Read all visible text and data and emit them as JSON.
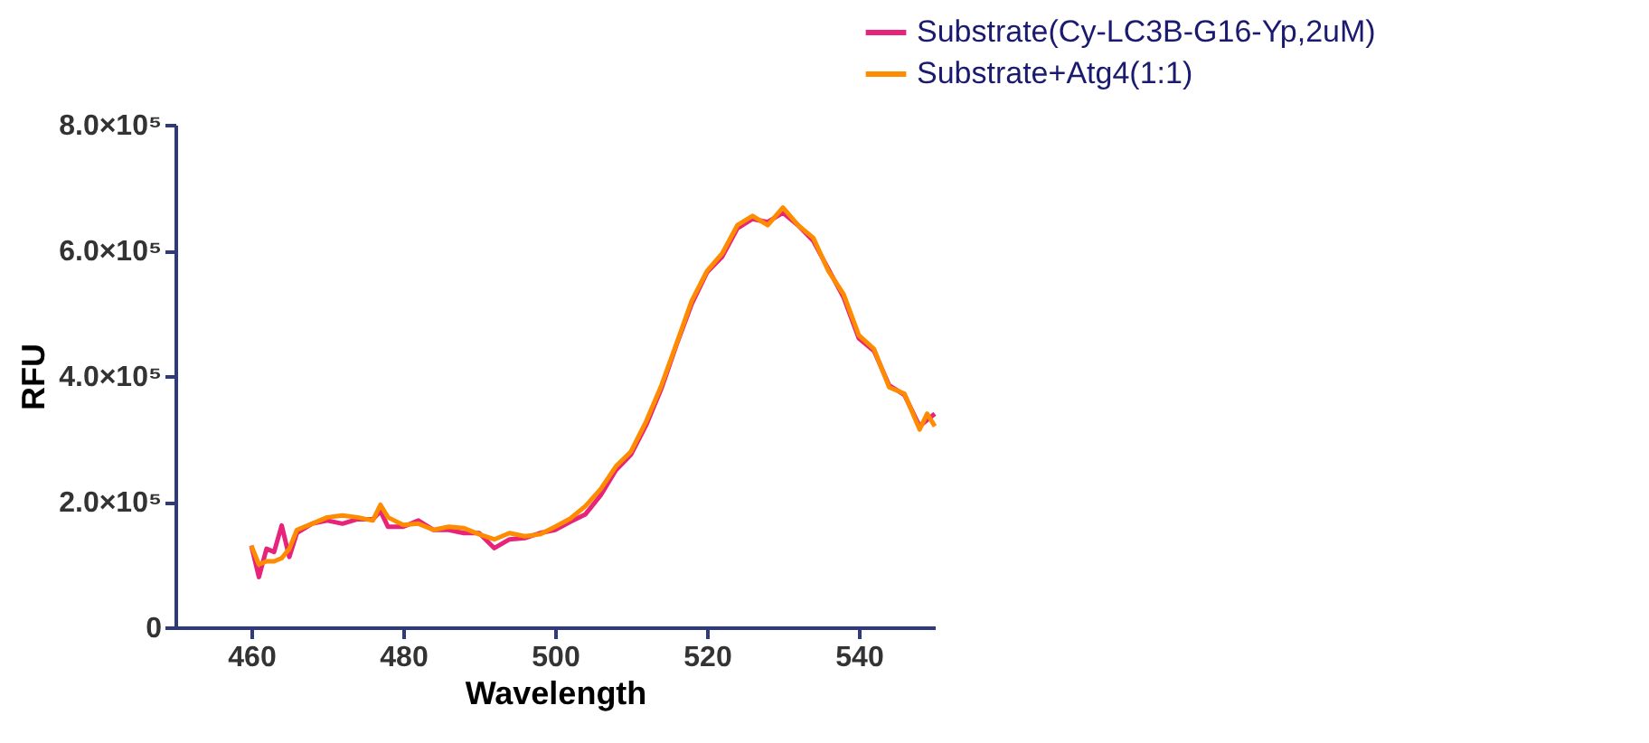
{
  "chart_data": {
    "type": "line",
    "xlabel": "Wavelength",
    "ylabel": "RFU",
    "xlim": [
      450,
      550
    ],
    "xticks": [
      460,
      480,
      500,
      520,
      540
    ],
    "ylim": [
      0,
      800000
    ],
    "yticks": [
      {
        "value": 0,
        "label": "0"
      },
      {
        "value": 200000,
        "label": "2.0×10⁵"
      },
      {
        "value": 400000,
        "label": "4.0×10⁵"
      },
      {
        "value": 600000,
        "label": "6.0×10⁵"
      },
      {
        "value": 800000,
        "label": "8.0×10⁵"
      }
    ],
    "grid": false,
    "legend": "top right",
    "marker": "none",
    "line_style": "solid",
    "series": [
      {
        "name": "Substrate(Cy-LC3B-G16-Yp,2uM)",
        "color": "#e8237a",
        "x": [
          460,
          461,
          462,
          463,
          464,
          465,
          466,
          468,
          470,
          472,
          474,
          476,
          477,
          478,
          480,
          482,
          484,
          486,
          488,
          490,
          492,
          494,
          496,
          498,
          500,
          502,
          504,
          506,
          508,
          510,
          512,
          514,
          516,
          518,
          520,
          522,
          524,
          526,
          528,
          530,
          532,
          534,
          536,
          538,
          540,
          542,
          544,
          546,
          548,
          549,
          550
        ],
        "values": [
          130000,
          80000,
          125000,
          120000,
          162000,
          112000,
          150000,
          165000,
          170000,
          165000,
          172000,
          172000,
          185000,
          160000,
          160000,
          170000,
          155000,
          155000,
          150000,
          150000,
          126000,
          140000,
          142000,
          150000,
          155000,
          168000,
          180000,
          210000,
          250000,
          275000,
          322000,
          380000,
          450000,
          515000,
          565000,
          590000,
          635000,
          650000,
          645000,
          660000,
          640000,
          615000,
          570000,
          525000,
          460000,
          440000,
          385000,
          370000,
          320000,
          330000,
          340000
        ]
      },
      {
        "name": "Substrate+Atg4(1:1)",
        "color": "#ff8c00",
        "x": [
          460,
          461,
          462,
          463,
          464,
          465,
          466,
          468,
          470,
          472,
          474,
          476,
          477,
          478,
          480,
          482,
          484,
          486,
          488,
          490,
          492,
          494,
          496,
          498,
          500,
          502,
          504,
          506,
          508,
          510,
          512,
          514,
          516,
          518,
          520,
          522,
          524,
          526,
          528,
          530,
          532,
          534,
          536,
          538,
          540,
          542,
          544,
          546,
          548,
          549,
          550
        ],
        "values": [
          130000,
          100000,
          105000,
          105000,
          110000,
          125000,
          155000,
          165000,
          175000,
          178000,
          175000,
          170000,
          195000,
          175000,
          163000,
          165000,
          155000,
          160000,
          158000,
          148000,
          140000,
          150000,
          145000,
          148000,
          160000,
          173000,
          193000,
          220000,
          256000,
          280000,
          328000,
          385000,
          452000,
          520000,
          567000,
          595000,
          640000,
          655000,
          640000,
          668000,
          640000,
          620000,
          567000,
          530000,
          465000,
          443000,
          382000,
          372000,
          315000,
          340000,
          320000
        ]
      }
    ]
  }
}
